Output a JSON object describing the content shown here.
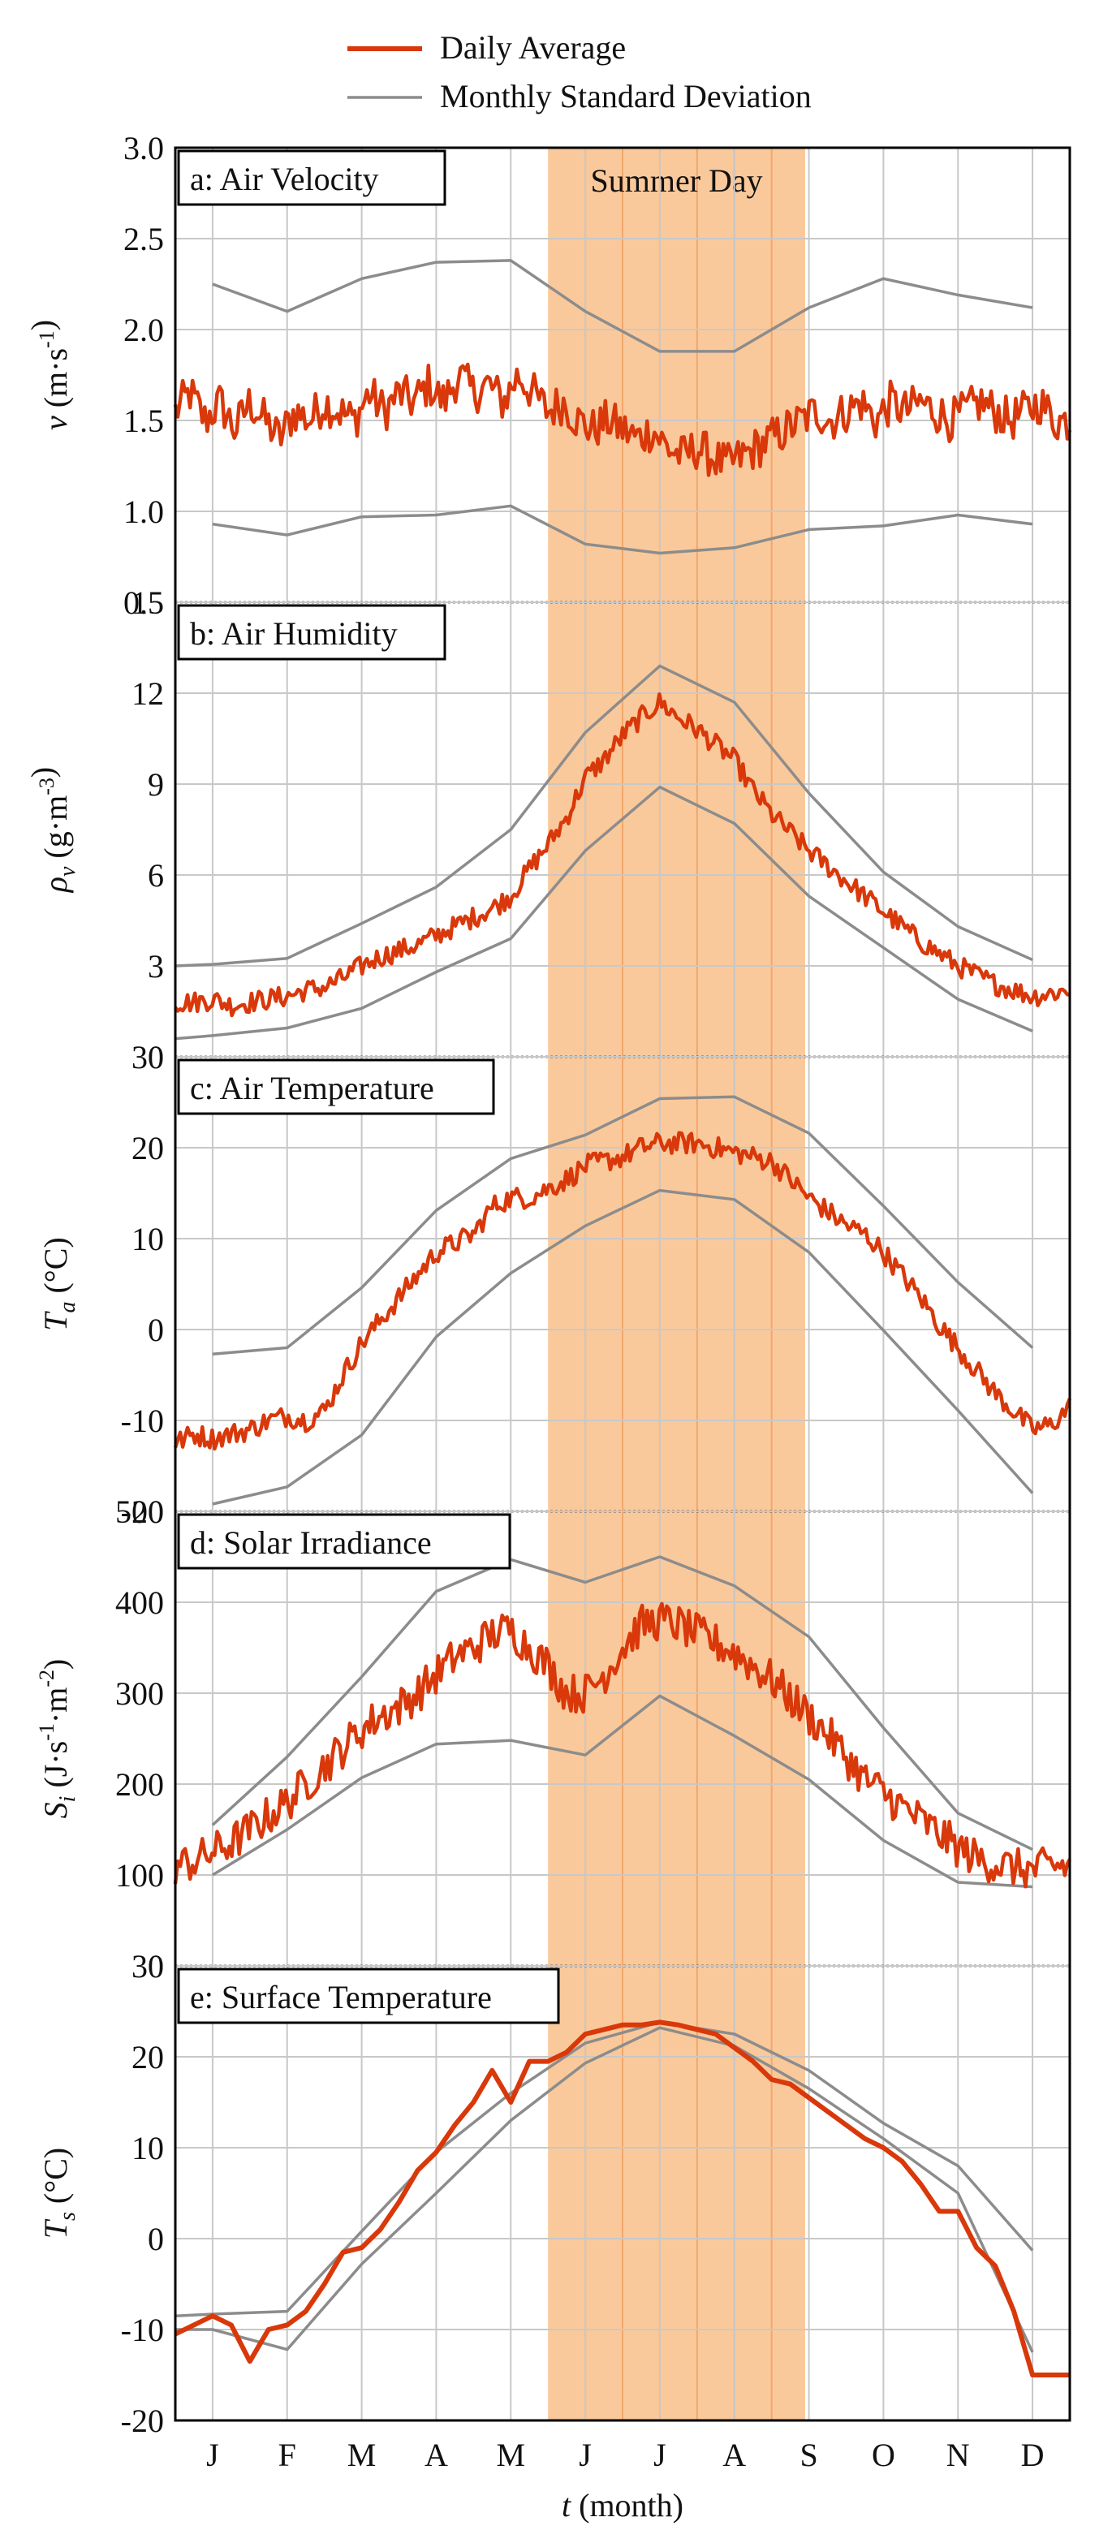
{
  "legend": {
    "daily_label": "Daily Average",
    "std_label": "Monthly Standard Deviation"
  },
  "colors": {
    "daily": "#d9380a",
    "std": "#8c8c8c",
    "grid": "#c8c8c8",
    "band": "#f9c089",
    "band_line": "#f3a66a",
    "axis": "#000000"
  },
  "shared_x": {
    "xlabel_var": "t",
    "xlabel_unit": " (month)",
    "tick_labels": [
      "J",
      "F",
      "M",
      "A",
      "M",
      "J",
      "J",
      "A",
      "S",
      "O",
      "N",
      "D"
    ],
    "tick_positions": [
      0.5,
      1.5,
      2.5,
      3.5,
      4.5,
      5.5,
      6.5,
      7.5,
      8.5,
      9.5,
      10.5,
      11.5
    ],
    "xlim": [
      0,
      12
    ],
    "band": {
      "label": "Summer Day",
      "start": 5.0,
      "end": 8.45,
      "inner_lines": [
        5.5,
        6.0,
        6.5,
        7.0,
        7.5,
        8.0
      ]
    }
  },
  "chart_data": [
    {
      "type": "line",
      "panel_title": "a: Air Velocity",
      "ylabel_var": "v",
      "ylabel_unit": "m·s",
      "ylabel_sup": "-1",
      "ylim": [
        0.5,
        3.0
      ],
      "yticks": [
        0.5,
        1.0,
        1.5,
        2.0,
        2.5,
        3.0
      ],
      "ytick_labels": [
        "0.5",
        "1.0",
        "1.5",
        "2.0",
        "2.5",
        "3.0"
      ],
      "daily": {
        "name": "Daily Average",
        "x": [
          0.0,
          0.2,
          0.4,
          0.6,
          0.8,
          1.0,
          1.2,
          1.4,
          1.6,
          1.8,
          2.0,
          2.2,
          2.4,
          2.6,
          2.8,
          3.0,
          3.2,
          3.4,
          3.6,
          3.8,
          4.0,
          4.2,
          4.4,
          4.6,
          4.8,
          5.0,
          5.2,
          5.4,
          5.6,
          5.8,
          6.0,
          6.2,
          6.4,
          6.6,
          6.8,
          7.0,
          7.2,
          7.4,
          7.6,
          7.8,
          8.0,
          8.2,
          8.4,
          8.6,
          8.8,
          9.0,
          9.2,
          9.4,
          9.6,
          9.8,
          10.0,
          10.2,
          10.4,
          10.6,
          10.8,
          11.0,
          11.2,
          11.4,
          11.6,
          11.8,
          12.0
        ],
        "y": [
          1.55,
          1.65,
          1.5,
          1.6,
          1.45,
          1.6,
          1.5,
          1.4,
          1.55,
          1.5,
          1.6,
          1.55,
          1.5,
          1.65,
          1.55,
          1.65,
          1.6,
          1.7,
          1.6,
          1.75,
          1.65,
          1.7,
          1.6,
          1.75,
          1.65,
          1.55,
          1.6,
          1.5,
          1.45,
          1.5,
          1.45,
          1.4,
          1.45,
          1.35,
          1.3,
          1.35,
          1.3,
          1.25,
          1.3,
          1.35,
          1.4,
          1.45,
          1.5,
          1.55,
          1.5,
          1.55,
          1.6,
          1.5,
          1.6,
          1.55,
          1.6,
          1.55,
          1.5,
          1.55,
          1.6,
          1.55,
          1.5,
          1.55,
          1.6,
          1.5,
          1.5
        ],
        "jitter": 0.12
      },
      "std_upper": {
        "name": "Monthly Standard Deviation",
        "x": [
          0.5,
          1.5,
          2.5,
          3.5,
          4.5,
          5.5,
          6.5,
          7.5,
          8.5,
          9.5,
          10.5,
          11.5
        ],
        "y": [
          2.25,
          2.1,
          2.28,
          2.37,
          2.38,
          2.1,
          1.88,
          1.88,
          2.12,
          2.28,
          2.19,
          2.12
        ]
      },
      "std_lower": {
        "name": "Monthly Standard Deviation",
        "x": [
          0.5,
          1.5,
          2.5,
          3.5,
          4.5,
          5.5,
          6.5,
          7.5,
          8.5,
          9.5,
          10.5,
          11.5
        ],
        "y": [
          0.93,
          0.87,
          0.97,
          0.98,
          1.03,
          0.82,
          0.77,
          0.8,
          0.9,
          0.92,
          0.98,
          0.93
        ]
      }
    },
    {
      "type": "line",
      "panel_title": "b: Air Humidity",
      "ylabel_var": "ρ",
      "ylabel_sub": "v",
      "ylabel_unit": "g·m",
      "ylabel_sup": "-3",
      "ylim": [
        0,
        15
      ],
      "yticks": [
        0,
        3,
        6,
        9,
        12,
        15
      ],
      "ytick_labels": [
        "0",
        "3",
        "6",
        "9",
        "12",
        "15"
      ],
      "daily": {
        "name": "Daily Average",
        "x": [
          0.0,
          0.25,
          0.5,
          0.75,
          1.0,
          1.25,
          1.5,
          1.75,
          2.0,
          2.25,
          2.5,
          2.75,
          3.0,
          3.25,
          3.5,
          3.75,
          4.0,
          4.25,
          4.5,
          4.75,
          5.0,
          5.25,
          5.5,
          5.75,
          6.0,
          6.25,
          6.5,
          6.75,
          7.0,
          7.25,
          7.5,
          7.75,
          8.0,
          8.25,
          8.5,
          8.75,
          9.0,
          9.25,
          9.5,
          9.75,
          10.0,
          10.25,
          10.5,
          10.75,
          11.0,
          11.25,
          11.5,
          11.75,
          12.0
        ],
        "y": [
          1.8,
          1.8,
          1.9,
          1.7,
          1.8,
          1.9,
          2.0,
          2.2,
          2.3,
          2.6,
          3.0,
          3.3,
          3.5,
          3.7,
          4.0,
          4.3,
          4.6,
          4.9,
          5.3,
          6.2,
          7.0,
          7.9,
          9.2,
          9.8,
          10.6,
          11.2,
          11.7,
          11.2,
          10.8,
          10.3,
          9.8,
          8.8,
          8.0,
          7.4,
          6.8,
          6.3,
          5.8,
          5.3,
          4.8,
          4.3,
          3.8,
          3.4,
          3.0,
          2.7,
          2.4,
          2.2,
          2.0,
          2.1,
          2.2
        ],
        "jitter": 0.35
      },
      "std_upper": {
        "name": "Monthly Standard Deviation",
        "x": [
          0.0,
          0.5,
          1.5,
          2.5,
          3.5,
          4.5,
          5.5,
          6.5,
          7.5,
          8.5,
          9.5,
          10.5,
          11.5
        ],
        "y": [
          3.0,
          3.05,
          3.25,
          4.4,
          5.6,
          7.5,
          10.7,
          12.9,
          11.7,
          8.7,
          6.1,
          4.3,
          3.2
        ]
      },
      "std_lower": {
        "name": "Monthly Standard Deviation",
        "x": [
          0.0,
          0.5,
          1.5,
          2.5,
          3.5,
          4.5,
          5.5,
          6.5,
          7.5,
          8.5,
          9.5,
          10.5,
          11.5
        ],
        "y": [
          0.6,
          0.7,
          0.95,
          1.6,
          2.8,
          3.9,
          6.8,
          8.9,
          7.7,
          5.3,
          3.6,
          1.9,
          0.85
        ]
      }
    },
    {
      "type": "line",
      "panel_title": "c: Air Temperature",
      "ylabel_var": "T",
      "ylabel_sub": "a",
      "ylabel_unit": "°C",
      "ylim": [
        -20,
        30
      ],
      "yticks": [
        -20,
        -10,
        0,
        10,
        20,
        30
      ],
      "ytick_labels": [
        "-20",
        "-10",
        "0",
        "10",
        "20",
        "30"
      ],
      "daily": {
        "name": "Daily Average",
        "x": [
          0.0,
          0.25,
          0.5,
          0.75,
          1.0,
          1.25,
          1.5,
          1.75,
          2.0,
          2.25,
          2.5,
          2.75,
          3.0,
          3.25,
          3.5,
          3.75,
          4.0,
          4.25,
          4.5,
          4.75,
          5.0,
          5.25,
          5.5,
          5.75,
          6.0,
          6.25,
          6.5,
          6.75,
          7.0,
          7.25,
          7.5,
          7.75,
          8.0,
          8.25,
          8.5,
          8.75,
          9.0,
          9.25,
          9.5,
          9.75,
          10.0,
          10.25,
          10.5,
          10.75,
          11.0,
          11.25,
          11.5,
          11.75,
          12.0
        ],
        "y": [
          -12.5,
          -11.5,
          -12.0,
          -11.5,
          -11.0,
          -10.0,
          -9.5,
          -10.0,
          -9.0,
          -5.0,
          -1.5,
          1.0,
          3.5,
          6.0,
          8.5,
          9.5,
          10.5,
          13.5,
          14.5,
          14.5,
          15.5,
          16.5,
          18.0,
          18.5,
          19.0,
          20.0,
          20.5,
          20.5,
          20.5,
          20.0,
          19.5,
          19.0,
          18.5,
          16.5,
          14.5,
          13.0,
          11.5,
          10.5,
          8.5,
          6.0,
          3.5,
          0.5,
          -2.0,
          -4.5,
          -7.0,
          -9.0,
          -11.0,
          -10.5,
          -8.5
        ],
        "jitter": 1.2
      },
      "std_upper": {
        "name": "Monthly Standard Deviation",
        "x": [
          0.5,
          1.5,
          2.5,
          3.5,
          4.5,
          5.5,
          6.5,
          7.5,
          8.5,
          9.5,
          10.5,
          11.5
        ],
        "y": [
          -2.7,
          -2.0,
          4.6,
          13.1,
          18.8,
          21.4,
          25.4,
          25.6,
          21.6,
          13.6,
          5.2,
          -2.0
        ]
      },
      "std_lower": {
        "name": "Monthly Standard Deviation",
        "x": [
          0.5,
          1.5,
          2.5,
          3.5,
          4.5,
          5.5,
          6.5,
          7.5,
          8.5,
          9.5,
          10.5,
          11.5
        ],
        "y": [
          -19.2,
          -17.3,
          -11.6,
          -0.8,
          6.2,
          11.4,
          15.3,
          14.3,
          8.5,
          -0.1,
          -8.9,
          -18.0
        ]
      }
    },
    {
      "type": "line",
      "panel_title": "d: Solar Irradiance",
      "ylabel_var": "S",
      "ylabel_sub": "i",
      "ylabel_unit": "J·s",
      "ylabel_sup": "-1",
      "ylabel_unit2": "·m",
      "ylabel_sup2": "-2",
      "ylim": [
        0,
        500
      ],
      "yticks": [
        0,
        100,
        200,
        300,
        400,
        500
      ],
      "ytick_labels": [
        "0",
        "100",
        "200",
        "300",
        "400",
        "500"
      ],
      "daily": {
        "name": "Daily Average",
        "x": [
          0.0,
          0.25,
          0.5,
          0.75,
          1.0,
          1.25,
          1.5,
          1.75,
          2.0,
          2.25,
          2.5,
          2.75,
          3.0,
          3.25,
          3.5,
          3.75,
          4.0,
          4.25,
          4.5,
          4.75,
          5.0,
          5.25,
          5.5,
          5.75,
          6.0,
          6.25,
          6.5,
          6.75,
          7.0,
          7.25,
          7.5,
          7.75,
          8.0,
          8.25,
          8.5,
          8.75,
          9.0,
          9.25,
          9.5,
          9.75,
          10.0,
          10.25,
          10.5,
          10.75,
          11.0,
          11.25,
          11.5,
          11.75,
          12.0
        ],
        "y": [
          110,
          115,
          125,
          135,
          150,
          165,
          180,
          200,
          220,
          240,
          260,
          275,
          285,
          300,
          320,
          340,
          350,
          365,
          370,
          350,
          330,
          300,
          300,
          320,
          350,
          375,
          380,
          375,
          365,
          355,
          345,
          330,
          315,
          295,
          275,
          255,
          230,
          205,
          190,
          175,
          160,
          145,
          130,
          118,
          112,
          108,
          105,
          110,
          110
        ],
        "jitter": 22
      },
      "std_upper": {
        "name": "Monthly Standard Deviation",
        "x": [
          0.5,
          1.5,
          2.5,
          3.5,
          4.5,
          5.5,
          6.5,
          7.5,
          8.5,
          9.5,
          10.5,
          11.5
        ],
        "y": [
          155,
          230,
          318,
          412,
          447,
          422,
          450,
          418,
          362,
          262,
          168,
          128
        ]
      },
      "std_lower": {
        "name": "Monthly Standard Deviation",
        "x": [
          0.5,
          1.5,
          2.5,
          3.5,
          4.5,
          5.5,
          6.5,
          7.5,
          8.5,
          9.5,
          10.5,
          11.5
        ],
        "y": [
          100,
          150,
          207,
          244,
          248,
          232,
          297,
          253,
          205,
          138,
          92,
          87
        ]
      }
    },
    {
      "type": "line",
      "panel_title": "e: Surface Temperature",
      "ylabel_var": "T",
      "ylabel_sub": "s",
      "ylabel_unit": "°C",
      "ylim": [
        -20,
        30
      ],
      "yticks": [
        -20,
        -10,
        0,
        10,
        20,
        30
      ],
      "ytick_labels": [
        "-20",
        "-10",
        "0",
        "10",
        "20",
        "30"
      ],
      "daily": {
        "name": "Daily Average",
        "x": [
          0.0,
          0.5,
          0.75,
          1.0,
          1.25,
          1.5,
          1.75,
          2.0,
          2.25,
          2.5,
          2.75,
          3.0,
          3.25,
          3.5,
          3.75,
          4.0,
          4.25,
          4.5,
          4.75,
          5.0,
          5.25,
          5.5,
          5.75,
          6.0,
          6.25,
          6.5,
          6.75,
          7.0,
          7.25,
          7.5,
          7.75,
          8.0,
          8.25,
          8.5,
          8.75,
          9.0,
          9.25,
          9.5,
          9.75,
          10.0,
          10.25,
          10.5,
          10.75,
          11.0,
          11.25,
          11.5,
          11.75,
          12.0
        ],
        "y": [
          -10.5,
          -8.5,
          -9.5,
          -13.5,
          -10.0,
          -9.5,
          -8.0,
          -5.0,
          -1.5,
          -1.0,
          1.0,
          4.0,
          7.5,
          9.5,
          12.5,
          15.0,
          18.5,
          15.0,
          19.5,
          19.5,
          20.5,
          22.5,
          23.0,
          23.5,
          23.5,
          23.8,
          23.5,
          23.0,
          22.5,
          21.0,
          19.5,
          17.5,
          17.0,
          15.5,
          14.0,
          12.5,
          11.0,
          10.0,
          8.5,
          6.0,
          3.0,
          3.0,
          -1.0,
          -3.0,
          -8.0,
          -15.0,
          -15.0,
          -15.0
        ],
        "jitter": 0
      },
      "std_upper": {
        "name": "Monthly Standard Deviation",
        "x": [
          0.0,
          0.5,
          1.5,
          2.5,
          3.5,
          4.5,
          5.5,
          6.5,
          7.5,
          8.5,
          9.5,
          10.5,
          11.5
        ],
        "y": [
          -8.5,
          -8.3,
          -8.0,
          0.8,
          9.5,
          16.0,
          21.5,
          23.8,
          22.5,
          18.5,
          12.7,
          8.0,
          -1.3
        ]
      },
      "std_lower": {
        "name": "Monthly Standard Deviation",
        "x": [
          0.0,
          0.5,
          1.5,
          2.5,
          3.5,
          4.5,
          5.5,
          6.5,
          7.5,
          8.5,
          9.5,
          10.5,
          11.5
        ],
        "y": [
          -10.0,
          -10.0,
          -12.2,
          -2.8,
          5.0,
          13.0,
          19.3,
          23.2,
          21.2,
          16.5,
          11.0,
          5.0,
          -12.5
        ]
      }
    }
  ]
}
